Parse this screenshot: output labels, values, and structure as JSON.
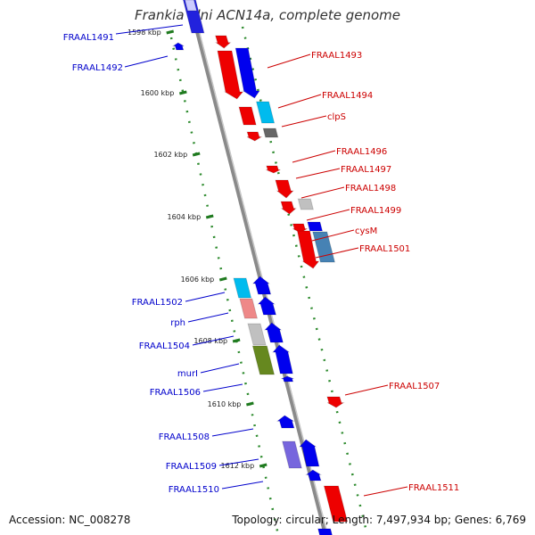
{
  "title": "Frankia alni ACN14a, complete genome",
  "footer": {
    "accession": "Accession: NC_008278",
    "summary": "Topology: circular; Length: 7,497,934 bp; Genes: 6,769"
  },
  "colors": {
    "label_left": "#0000cc",
    "label_right": "#cc0000",
    "backbone": "#8a8a8a",
    "dotted_track": "#2e8b2e"
  },
  "ticks": [
    "1598 kbp",
    "1600 kbp",
    "1602 kbp",
    "1604 kbp",
    "1606 kbp",
    "1608 kbp",
    "1610 kbp",
    "1612 kbp"
  ],
  "genes_left": [
    "FRAAL1491",
    "FRAAL1492",
    "FRAAL1502",
    "rph",
    "FRAAL1504",
    "murI",
    "FRAAL1506",
    "FRAAL1508",
    "FRAAL1509",
    "FRAAL1510"
  ],
  "genes_right": [
    "FRAAL1493",
    "FRAAL1494",
    "clpS",
    "FRAAL1496",
    "FRAAL1497",
    "FRAAL1498",
    "FRAAL1499",
    "cysM",
    "FRAAL1501",
    "FRAAL1507",
    "FRAAL1511"
  ]
}
